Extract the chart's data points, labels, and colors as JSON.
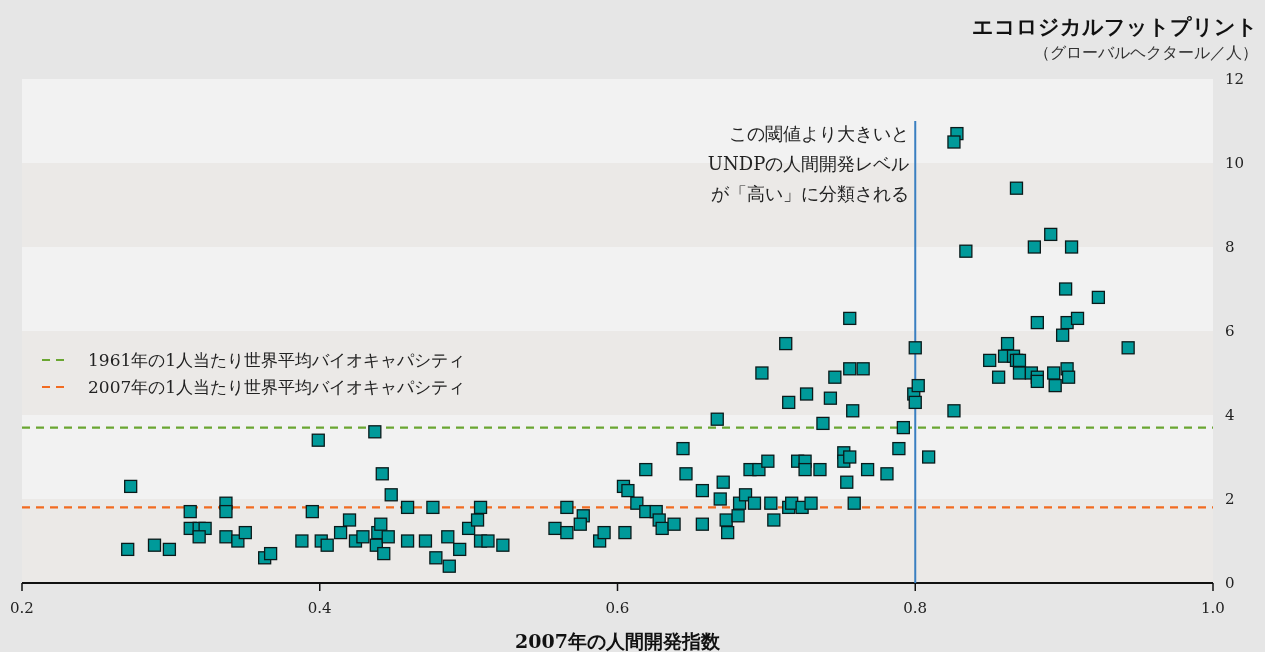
{
  "chart_data": {
    "type": "scatter",
    "title": "エコロジカルフットプリント",
    "subtitle": "（グローバルヘクタール／人）",
    "xlabel": "2007年の人間開発指数",
    "xlim": [
      0.2,
      1.0
    ],
    "xticks": [
      0.2,
      0.4,
      0.6,
      0.8,
      {
        "value": 1,
        "label": "1.0"
      }
    ],
    "ylim": [
      0,
      12
    ],
    "yticks": [
      0,
      2,
      4,
      6,
      8,
      10,
      12
    ],
    "marker": "square",
    "legend": "left",
    "annotations": [
      "この閾値より大きいと",
      "UNDPの人間開発レベル",
      "が「高い」に分類される"
    ],
    "series": [
      {
        "color": "#009a9a",
        "x": [
          0.271,
          0.273,
          0.289,
          0.299,
          0.313,
          0.313,
          0.319,
          0.323,
          0.319,
          0.337,
          0.337,
          0.337,
          0.345,
          0.35,
          0.363,
          0.367,
          0.388,
          0.395,
          0.401,
          0.399,
          0.405,
          0.414,
          0.42,
          0.424,
          0.429,
          0.437,
          0.438,
          0.439,
          0.441,
          0.442,
          0.443,
          0.446,
          0.448,
          0.459,
          0.459,
          0.471,
          0.476,
          0.478,
          0.486,
          0.487,
          0.494,
          0.5,
          0.506,
          0.508,
          0.508,
          0.513,
          0.523,
          0.558,
          0.566,
          0.566,
          0.577,
          0.575,
          0.588,
          0.591,
          0.605,
          0.604,
          0.607,
          0.619,
          0.613,
          0.619,
          0.626,
          0.628,
          0.63,
          0.638,
          0.644,
          0.646,
          0.657,
          0.657,
          0.667,
          0.669,
          0.671,
          0.673,
          0.674,
          0.681,
          0.682,
          0.686,
          0.689,
          0.692,
          0.695,
          0.697,
          0.701,
          0.703,
          0.705,
          0.713,
          0.715,
          0.715,
          0.717,
          0.721,
          0.726,
          0.726,
          0.724,
          0.727,
          0.73,
          0.736,
          0.738,
          0.743,
          0.746,
          0.752,
          0.752,
          0.756,
          0.754,
          0.756,
          0.765,
          0.758,
          0.759,
          0.768,
          0.781,
          0.789,
          0.792,
          0.756,
          0.8,
          0.799,
          0.8,
          0.802,
          0.809,
          0.826,
          0.85,
          0.856,
          0.862,
          0.86,
          0.866,
          0.868,
          0.87,
          0.87,
          0.878,
          0.882,
          0.882,
          0.882,
          0.893,
          0.894,
          0.899,
          0.902,
          0.909,
          0.902,
          0.903,
          0.943,
          0.828,
          0.826,
          0.868,
          0.891,
          0.88,
          0.905,
          0.834,
          0.901,
          0.923
        ],
        "values": [
          0.8,
          2.3,
          0.9,
          0.8,
          1.7,
          1.3,
          1.3,
          1.3,
          1.1,
          1.9,
          1.7,
          1.1,
          1.0,
          1.2,
          0.6,
          0.7,
          1.0,
          1.7,
          1.0,
          3.4,
          0.9,
          1.2,
          1.5,
          1.0,
          1.1,
          3.6,
          0.9,
          1.2,
          1.4,
          2.6,
          0.7,
          1.1,
          2.1,
          1.8,
          1.0,
          1.0,
          1.8,
          0.6,
          1.1,
          0.4,
          0.8,
          1.3,
          1.5,
          1.8,
          1.0,
          1.0,
          0.9,
          1.3,
          1.8,
          1.2,
          1.6,
          1.4,
          1.0,
          1.2,
          1.2,
          2.3,
          2.2,
          2.7,
          1.9,
          1.7,
          1.7,
          1.5,
          1.3,
          1.4,
          3.2,
          2.6,
          2.2,
          1.4,
          3.9,
          2.0,
          2.4,
          1.5,
          1.2,
          1.6,
          1.9,
          2.1,
          2.7,
          1.9,
          2.7,
          5.0,
          2.9,
          1.9,
          1.5,
          5.7,
          4.3,
          1.8,
          1.9,
          2.9,
          2.9,
          2.7,
          1.8,
          4.5,
          1.9,
          2.7,
          3.8,
          4.4,
          4.9,
          3.1,
          2.9,
          3.0,
          2.4,
          5.1,
          5.1,
          4.1,
          1.9,
          2.7,
          2.6,
          3.2,
          3.7,
          6.3,
          5.6,
          4.5,
          4.3,
          4.7,
          3.0,
          4.1,
          5.3,
          4.9,
          5.7,
          5.4,
          5.4,
          5.3,
          5.3,
          5.0,
          5.0,
          4.9,
          4.8,
          6.2,
          5.0,
          4.7,
          5.9,
          6.2,
          6.3,
          5.1,
          4.9,
          5.6,
          10.7,
          10.5,
          9.4,
          8.3,
          8.0,
          8.0,
          7.9,
          7.0,
          6.8
        ]
      }
    ],
    "ref_lines": [
      {
        "axis": "y",
        "value": 3.7,
        "label": "1961年の1人当たり世界平均バイオキャパシティ",
        "color": "#6aa632",
        "line_style": "dashed"
      },
      {
        "axis": "y",
        "value": 1.8,
        "label": "2007年の1人当たり世界平均バイオキャパシティ",
        "color": "#f26b21",
        "line_style": "dashed"
      },
      {
        "axis": "x",
        "value": 0.8,
        "color": "#3a7fc1",
        "line_style": "solid"
      }
    ]
  }
}
